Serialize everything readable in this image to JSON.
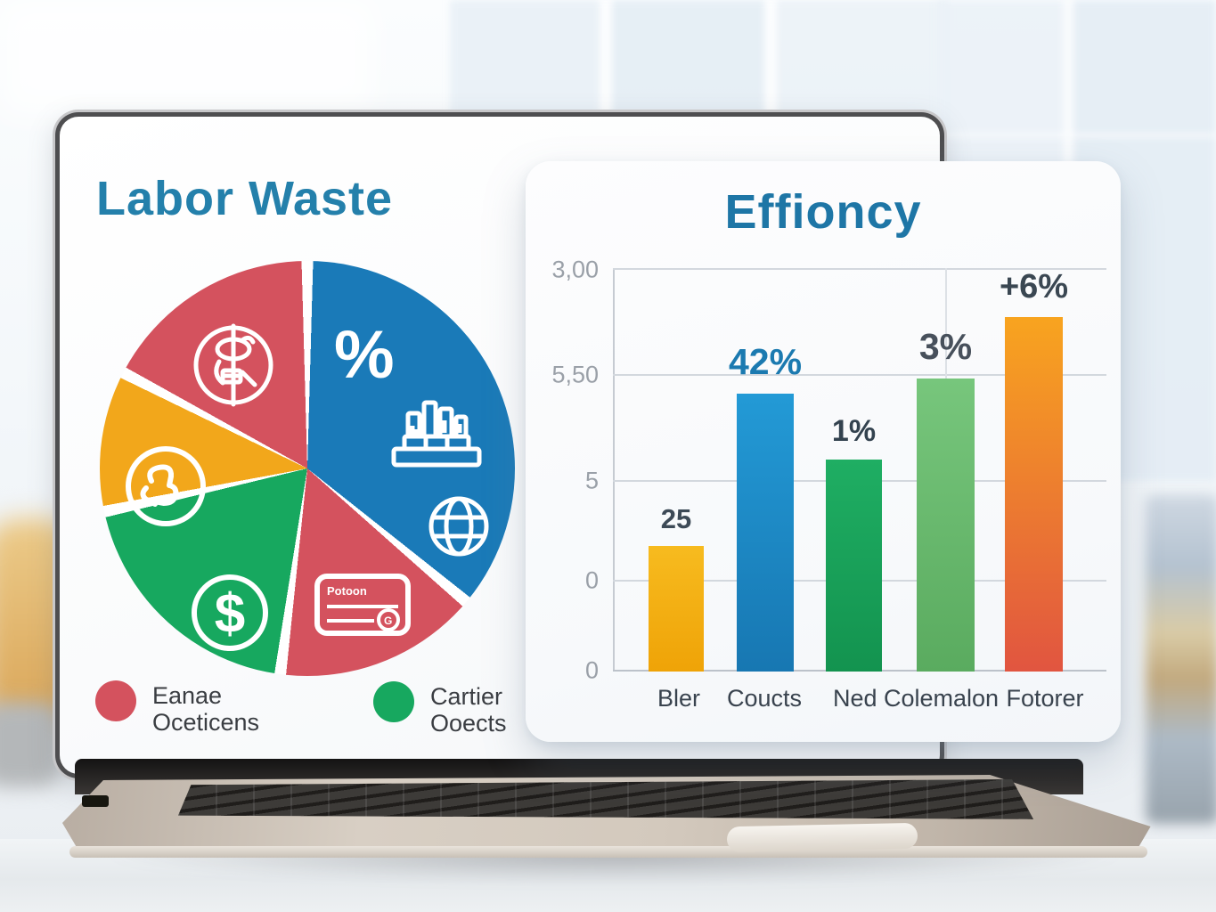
{
  "window": {
    "description": "Laptop mockup displaying an infographic with a Labor Waste pie chart and an Effioncy bar chart"
  },
  "colors": {
    "title_left": "#2480ab",
    "title_right": "#1e76a6",
    "pie_blue": "#1a7ab8",
    "pie_red": "#d4525e",
    "pie_green": "#17a85f",
    "pie_yellow": "#f2a71b",
    "grid": "#d3d8de",
    "tick_text": "#9aa0a8",
    "label_text": "#39434e"
  },
  "icons": {
    "pie_blue_slice": [
      "percent-symbol",
      "bar-chart-podium-icon",
      "globe-icon"
    ],
    "pie_red_bottom_slice": [
      "card-icon"
    ],
    "pie_red_top_slice": [
      "emblem-icon"
    ],
    "pie_yellow_slice": [
      "thumbs-up-icon"
    ],
    "pie_green_slice": [
      "dollar-icon"
    ],
    "card_emblem_letter": "G"
  },
  "pie_panel": {
    "title": "Labor Waste",
    "percent_symbol": "%",
    "card_label": "Potoon",
    "legend": [
      {
        "line1": "Eanae",
        "line2": "Oceticens",
        "color": "#d4525e"
      },
      {
        "line1": "Cartier",
        "line2": "Ooects",
        "color": "#17a85f"
      }
    ]
  },
  "bar_panel": {
    "title": "Effioncy",
    "y_ticks": [
      "3,00",
      "5,50",
      "5",
      "0",
      "0"
    ],
    "x_labels": [
      "Bler",
      "Coucts",
      "Ned Colemalon",
      "Fotorer"
    ]
  },
  "chart_data": [
    {
      "type": "pie",
      "title": "Labor Waste",
      "segments": [
        {
          "name": "blue-percent",
          "color": "#1a7ab8",
          "start_deg": 1.6,
          "end_deg": 128.4,
          "value_pct": 36
        },
        {
          "name": "red-bottom",
          "color": "#d4525e",
          "start_deg": 131.6,
          "end_deg": 185.9,
          "value_pct": 16
        },
        {
          "name": "green",
          "color": "#17a85f",
          "start_deg": 189.1,
          "end_deg": 256.4,
          "value_pct": 19.5
        },
        {
          "name": "yellow",
          "color": "#f2a71b",
          "start_deg": 259.6,
          "end_deg": 295.9,
          "value_pct": 11
        },
        {
          "name": "red-top-left",
          "color": "#d4525e",
          "start_deg": 299.1,
          "end_deg": 358.4,
          "value_pct": 17.5
        }
      ],
      "legend": [
        {
          "label": "Eanae Oceticens",
          "color": "#d4525e"
        },
        {
          "label": "Cartier Ooects",
          "color": "#17a85f"
        }
      ]
    },
    {
      "type": "bar",
      "title": "Effioncy",
      "categories": [
        "Bler",
        "Coucts",
        "Ned Colemalon",
        "Fotorer"
      ],
      "y_tick_labels": [
        "3,00",
        "5,50",
        "5",
        "0",
        "0"
      ],
      "grid": true,
      "bars": [
        {
          "label": "25",
          "height_pct": 31.1,
          "colors": [
            "#f7bb1f",
            "#efa307"
          ],
          "label_color": "#3d4a57"
        },
        {
          "label": "42%",
          "height_pct": 68.9,
          "colors": [
            "#239ad6",
            "#1777b2"
          ],
          "label_color": "#1b7ab0"
        },
        {
          "label": "1%",
          "height_pct": 52.5,
          "colors": [
            "#1fae63",
            "#13934f"
          ],
          "label_color": "#33424f"
        },
        {
          "label": "3%",
          "height_pct": 72.6,
          "colors": [
            "#77c67c",
            "#5aab5f"
          ],
          "label_color": "#47505b"
        },
        {
          "label": "+6%",
          "height_pct": 88.1,
          "colors": [
            "#f8a41f",
            "#e15540"
          ],
          "label_color": "#3a4752"
        }
      ]
    }
  ]
}
